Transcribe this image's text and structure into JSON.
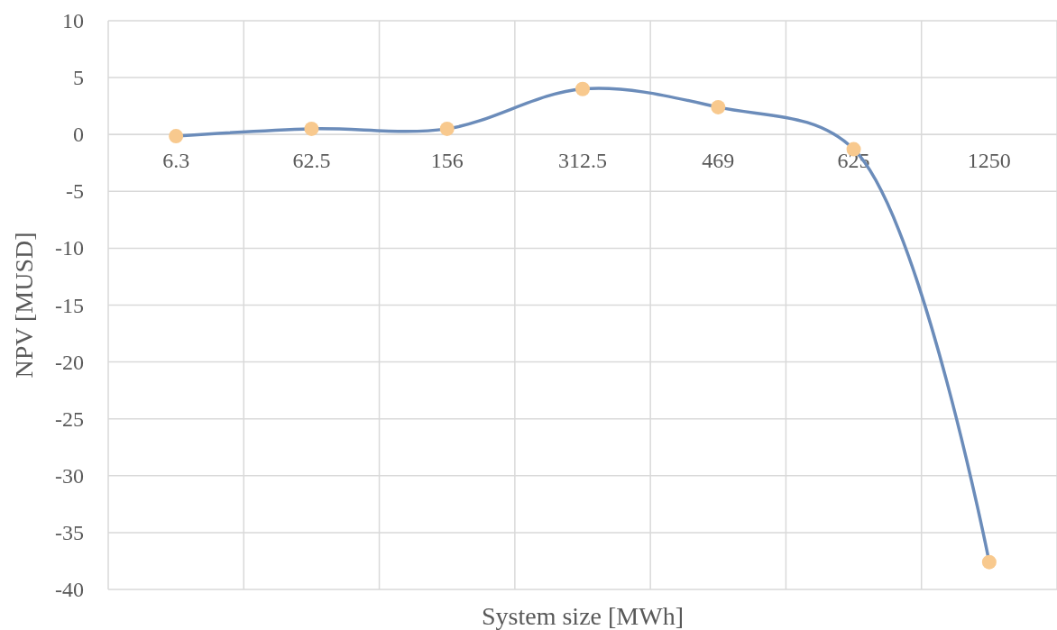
{
  "chart_data": {
    "type": "line",
    "xlabel": "System size [MWh]",
    "ylabel": "NPV [MUSD]",
    "categories": [
      "6.3",
      "62.5",
      "156",
      "312.5",
      "469",
      "625",
      "1250"
    ],
    "series": [
      {
        "color": "#6b8cba",
        "colors": [
          "#f8c98e",
          "#f8c98e",
          "#f8c98e",
          "#f8c98e",
          "#f8c98e",
          "#f8c98e",
          "#f8c98e"
        ],
        "values": [
          -0.15,
          0.5,
          0.5,
          4.0,
          2.4,
          -1.3,
          -37.6
        ]
      }
    ],
    "ylim": [
      -40,
      10
    ],
    "yticks": [
      -40,
      -35,
      -30,
      -25,
      -20,
      -15,
      -10,
      -5,
      0,
      5,
      10
    ],
    "grid": true,
    "marker": "circle",
    "line_style": "solid"
  }
}
